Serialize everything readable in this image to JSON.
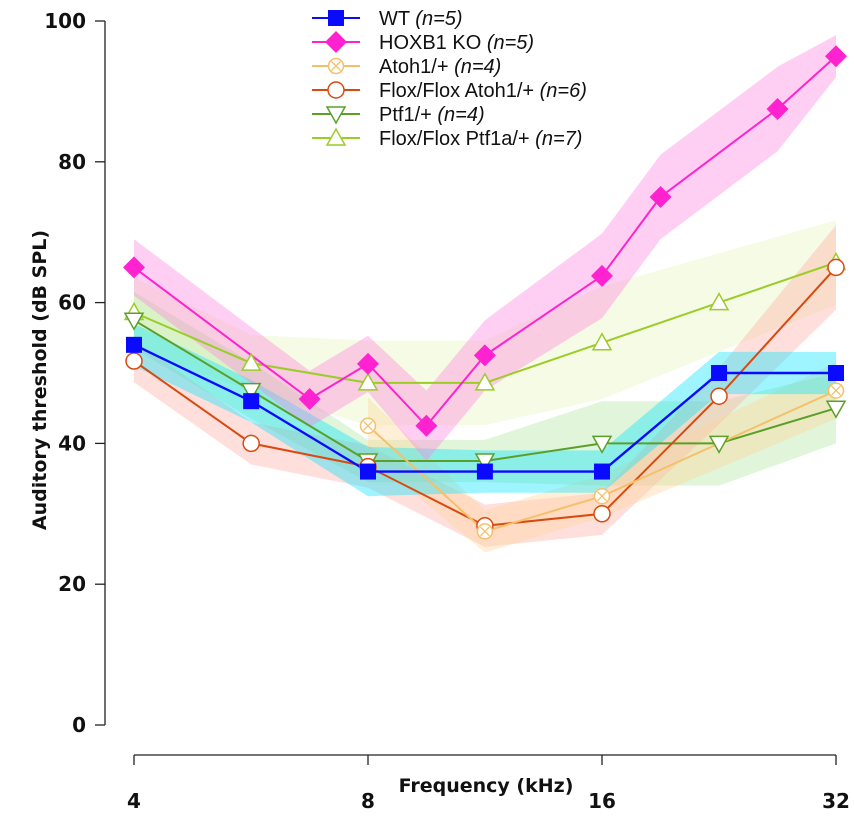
{
  "chart_data": {
    "type": "line",
    "title": "",
    "xlabel": "Frequency (kHz)",
    "ylabel": "Auditory threshold (dB SPL)",
    "x_scale": "log2",
    "xlim": [
      4,
      32
    ],
    "ylim": [
      0,
      100
    ],
    "x_ticks": [
      4,
      8,
      16,
      32
    ],
    "x_tick_labels": [
      "4",
      "8",
      "16",
      "32"
    ],
    "y_ticks": [
      0,
      20,
      40,
      60,
      80,
      100
    ],
    "y_tick_labels": [
      "0",
      "20",
      "40",
      "60",
      "80",
      "100"
    ],
    "grid": false,
    "legend_position": "top-center",
    "series": [
      {
        "name": "WT",
        "n_label": "(n=5)",
        "color": "#0a0aff",
        "band_color": "#00e5ff",
        "marker": "square",
        "x": [
          4,
          5.66,
          8,
          11.31,
          16,
          22.63,
          32
        ],
        "values": [
          54,
          46,
          36,
          36,
          36,
          50,
          50
        ],
        "band": [
          3,
          3,
          3.5,
          3,
          3,
          3,
          3
        ]
      },
      {
        "name": "HOXB1 KO",
        "n_label": "(n=5)",
        "color": "#ff22d0",
        "band_color": "#ff80e0",
        "marker": "diamond",
        "x": [
          4,
          6.73,
          8,
          9.51,
          11.31,
          16,
          19.03,
          26.91,
          32
        ],
        "values": [
          65,
          46.3,
          51.3,
          42.5,
          52.5,
          63.8,
          75,
          87.5,
          95
        ],
        "band": [
          4,
          4,
          4,
          5,
          5,
          6,
          6,
          6,
          3
        ]
      },
      {
        "name": "Atoh1/+",
        "n_label": "(n=4)",
        "color": "#f5c06a",
        "band_color": "#ffd49a",
        "marker": "circle-x",
        "x": [
          8,
          11.31,
          16,
          32
        ],
        "values": [
          42.5,
          27.5,
          32.5,
          47.5
        ],
        "band": [
          4,
          3,
          3,
          4
        ]
      },
      {
        "name": "Flox/Flox Atoh1/+",
        "n_label": "(n=6)",
        "color": "#d84a10",
        "band_color": "#ffaaa0",
        "marker": "circle",
        "x": [
          4,
          5.66,
          8,
          11.31,
          16,
          22.63,
          32
        ],
        "values": [
          51.7,
          40,
          36.7,
          28.3,
          30,
          46.7,
          65
        ],
        "band": [
          3,
          3,
          3,
          3,
          3,
          4,
          6
        ]
      },
      {
        "name": "Ptf1/+",
        "n_label": "(n=4)",
        "color": "#5aa028",
        "band_color": "#aee59a",
        "marker": "triangle-down",
        "x": [
          4,
          5.66,
          8,
          11.31,
          16,
          22.63,
          32
        ],
        "values": [
          57.5,
          47.5,
          37.5,
          37.5,
          40,
          40,
          45
        ],
        "band": [
          4,
          4,
          3,
          3,
          6,
          6,
          5
        ]
      },
      {
        "name": "Flox/Flox Ptf1a/+",
        "n_label": "(n=7)",
        "color": "#9ccc28",
        "band_color": "#e6f5b8",
        "marker": "triangle-up",
        "x": [
          4,
          5.66,
          8,
          11.31,
          16,
          22.63,
          32
        ],
        "values": [
          58.6,
          51.4,
          48.6,
          48.6,
          54.3,
          60,
          65.7
        ],
        "band": [
          5,
          4,
          6,
          6,
          8,
          7,
          6
        ]
      }
    ]
  }
}
